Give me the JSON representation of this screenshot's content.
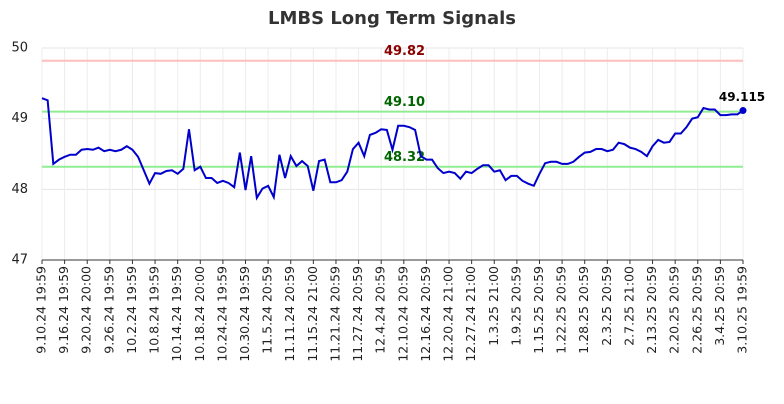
{
  "chart_data": {
    "type": "line",
    "title": "LMBS Long Term Signals",
    "categories": [
      "9.10.24 19:59",
      null,
      null,
      null,
      "9.16.24 19:59",
      null,
      null,
      null,
      "9.20.24 20:00",
      null,
      null,
      null,
      "9.26.24 19:59",
      null,
      null,
      null,
      "10.2.24 19:59",
      null,
      null,
      null,
      "10.8.24 19:59",
      null,
      null,
      null,
      "10.14.24 19:59",
      null,
      null,
      null,
      "10.18.24 20:00",
      null,
      null,
      null,
      "10.24.24 19:59",
      null,
      null,
      null,
      "10.30.24 19:59",
      null,
      null,
      null,
      "11.5.24 20:59",
      null,
      null,
      null,
      "11.11.24 20:59",
      null,
      null,
      null,
      "11.15.24 21:00",
      null,
      null,
      null,
      "11.21.24 20:59",
      null,
      null,
      null,
      "11.27.24 20:59",
      null,
      null,
      null,
      "12.4.24 20:59",
      null,
      null,
      null,
      "12.10.24 20:59",
      null,
      null,
      null,
      "12.16.24 20:59",
      null,
      null,
      null,
      "12.20.24 21:00",
      null,
      null,
      null,
      "12.27.24 21:00",
      null,
      null,
      null,
      "1.3.25 21:00",
      null,
      null,
      null,
      "1.9.25 20:59",
      null,
      null,
      null,
      "1.15.25 20:59",
      null,
      null,
      null,
      "1.22.25 20:59",
      null,
      null,
      null,
      "1.28.25 20:59",
      null,
      null,
      null,
      "2.3.25 20:59",
      null,
      null,
      null,
      "2.7.25 21:00",
      null,
      null,
      null,
      "2.13.25 20:59",
      null,
      null,
      null,
      "2.20.25 20:59",
      null,
      null,
      null,
      "2.26.25 20:59",
      null,
      null,
      null,
      "3.4.25 20:59",
      null,
      null,
      null,
      "3.10.25 19:59"
    ],
    "series": [
      {
        "color": "#0000cc",
        "values": [
          49.29,
          49.26,
          48.36,
          48.42,
          48.46,
          48.49,
          48.49,
          48.56,
          48.57,
          48.56,
          48.59,
          48.54,
          48.56,
          48.54,
          48.56,
          48.61,
          48.56,
          48.46,
          48.27,
          48.08,
          48.23,
          48.22,
          48.26,
          48.27,
          48.22,
          48.29,
          48.85,
          48.27,
          48.32,
          48.16,
          48.16,
          48.09,
          48.12,
          48.09,
          48.03,
          48.52,
          47.99,
          48.47,
          47.88,
          48.01,
          48.05,
          47.89,
          48.49,
          48.16,
          48.47,
          48.33,
          48.4,
          48.33,
          47.98,
          48.4,
          48.42,
          48.1,
          48.1,
          48.13,
          48.25,
          48.57,
          48.66,
          48.47,
          48.77,
          48.8,
          48.85,
          48.84,
          48.56,
          48.9,
          48.9,
          48.88,
          48.84,
          48.47,
          48.42,
          48.42,
          48.3,
          48.23,
          48.25,
          48.23,
          48.15,
          48.25,
          48.23,
          48.29,
          48.34,
          48.34,
          48.25,
          48.27,
          48.13,
          48.19,
          48.19,
          48.12,
          48.08,
          48.05,
          48.22,
          48.37,
          48.39,
          48.39,
          48.36,
          48.36,
          48.39,
          48.46,
          48.52,
          48.53,
          48.57,
          48.57,
          48.54,
          48.56,
          48.66,
          48.64,
          48.59,
          48.57,
          48.53,
          48.47,
          48.61,
          48.7,
          48.66,
          48.67,
          48.79,
          48.79,
          48.88,
          49.0,
          49.02,
          49.15,
          49.13,
          49.13,
          49.05,
          49.05,
          49.06,
          49.06,
          49.115
        ]
      }
    ],
    "reference_lines": [
      {
        "value": 49.82,
        "label": "49.82",
        "color": "#ffbdbd",
        "label_color": "#8b0000"
      },
      {
        "value": 49.1,
        "label": "49.10",
        "color": "#90ee90",
        "label_color": "#006400"
      },
      {
        "value": 48.32,
        "label": "48.32",
        "color": "#90ee90",
        "label_color": "#006400"
      }
    ],
    "ylim": [
      47,
      50
    ],
    "yticks": [
      47,
      48,
      49,
      50
    ],
    "grid": true
  }
}
